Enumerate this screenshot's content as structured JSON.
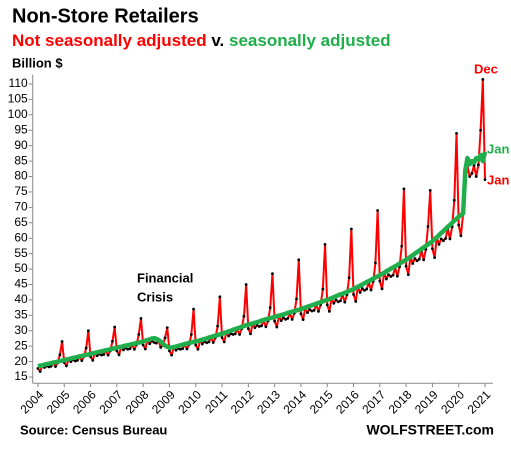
{
  "chart_data": {
    "type": "line",
    "title": "Non-Store Retailers",
    "subtitle_conjunction": "v.",
    "y_axis_label": "Billion $",
    "source": "Source: Census Bureau",
    "brand": "WOLFSTREET.com",
    "xlim": [
      2003.8,
      2021.3
    ],
    "xticks": [
      2004,
      2005,
      2006,
      2007,
      2008,
      2009,
      2010,
      2011,
      2012,
      2013,
      2014,
      2015,
      2016,
      2017,
      2018,
      2019,
      2020,
      2021
    ],
    "ylim": [
      13,
      113
    ],
    "yticks": [
      15,
      20,
      25,
      30,
      35,
      40,
      45,
      50,
      55,
      60,
      65,
      70,
      75,
      80,
      85,
      90,
      95,
      100,
      105,
      110
    ],
    "grid": false,
    "annotations": [
      {
        "text": "Dec",
        "color": "#ff0000"
      },
      {
        "text": "Jan",
        "color": "#1fae4b"
      },
      {
        "text": "Jan",
        "color": "#ff0000"
      },
      {
        "text": "Financial",
        "color": "#000000"
      },
      {
        "text": "Crisis",
        "color": "#000000"
      }
    ],
    "x": [
      2004,
      2004.083,
      2004.167,
      2004.25,
      2004.333,
      2004.417,
      2004.5,
      2004.583,
      2004.667,
      2004.75,
      2004.833,
      2004.917,
      2005,
      2005.083,
      2005.167,
      2005.25,
      2005.333,
      2005.417,
      2005.5,
      2005.583,
      2005.667,
      2005.75,
      2005.833,
      2005.917,
      2006,
      2006.083,
      2006.167,
      2006.25,
      2006.333,
      2006.417,
      2006.5,
      2006.583,
      2006.667,
      2006.75,
      2006.833,
      2006.917,
      2007,
      2007.083,
      2007.167,
      2007.25,
      2007.333,
      2007.417,
      2007.5,
      2007.583,
      2007.667,
      2007.75,
      2007.833,
      2007.917,
      2008,
      2008.083,
      2008.167,
      2008.25,
      2008.333,
      2008.417,
      2008.5,
      2008.583,
      2008.667,
      2008.75,
      2008.833,
      2008.917,
      2009,
      2009.083,
      2009.167,
      2009.25,
      2009.333,
      2009.417,
      2009.5,
      2009.583,
      2009.667,
      2009.75,
      2009.833,
      2009.917,
      2010,
      2010.083,
      2010.167,
      2010.25,
      2010.333,
      2010.417,
      2010.5,
      2010.583,
      2010.667,
      2010.75,
      2010.833,
      2010.917,
      2011,
      2011.083,
      2011.167,
      2011.25,
      2011.333,
      2011.417,
      2011.5,
      2011.583,
      2011.667,
      2011.75,
      2011.833,
      2011.917,
      2012,
      2012.083,
      2012.167,
      2012.25,
      2012.333,
      2012.417,
      2012.5,
      2012.583,
      2012.667,
      2012.75,
      2012.833,
      2012.917,
      2013,
      2013.083,
      2013.167,
      2013.25,
      2013.333,
      2013.417,
      2013.5,
      2013.583,
      2013.667,
      2013.75,
      2013.833,
      2013.917,
      2014,
      2014.083,
      2014.167,
      2014.25,
      2014.333,
      2014.417,
      2014.5,
      2014.583,
      2014.667,
      2014.75,
      2014.833,
      2014.917,
      2015,
      2015.083,
      2015.167,
      2015.25,
      2015.333,
      2015.417,
      2015.5,
      2015.583,
      2015.667,
      2015.75,
      2015.833,
      2015.917,
      2016,
      2016.083,
      2016.167,
      2016.25,
      2016.333,
      2016.417,
      2016.5,
      2016.583,
      2016.667,
      2016.75,
      2016.833,
      2016.917,
      2017,
      2017.083,
      2017.167,
      2017.25,
      2017.333,
      2017.417,
      2017.5,
      2017.583,
      2017.667,
      2017.75,
      2017.833,
      2017.917,
      2018,
      2018.083,
      2018.167,
      2018.25,
      2018.333,
      2018.417,
      2018.5,
      2018.583,
      2018.667,
      2018.75,
      2018.833,
      2018.917,
      2019,
      2019.083,
      2019.167,
      2019.25,
      2019.333,
      2019.417,
      2019.5,
      2019.583,
      2019.667,
      2019.75,
      2019.833,
      2019.917,
      2020,
      2020.083,
      2020.167,
      2020.25,
      2020.333,
      2020.417,
      2020.5,
      2020.583,
      2020.667,
      2020.75,
      2020.833,
      2020.917,
      2021
    ],
    "series": [
      {
        "name": "Not seasonally adjusted",
        "color": "#ff0000",
        "marker_color": "#000000",
        "values": [
          17.8,
          16.8,
          18.8,
          18.1,
          18.6,
          18.3,
          18.5,
          19.5,
          18.4,
          19.6,
          22.2,
          26.5,
          19.7,
          18.6,
          20.8,
          20.0,
          20.6,
          20.2,
          20.4,
          21.5,
          20.3,
          21.6,
          24.4,
          30.0,
          21.6,
          20.4,
          22.8,
          21.9,
          22.5,
          22.1,
          22.3,
          23.5,
          22.1,
          23.5,
          26.6,
          31.2,
          23.5,
          22.2,
          24.8,
          23.8,
          24.4,
          24.0,
          24.2,
          25.4,
          24.0,
          25.5,
          28.8,
          34.0,
          25.4,
          24.1,
          27.0,
          25.8,
          26.7,
          26.2,
          26.0,
          26.7,
          24.6,
          25.3,
          27.7,
          31.0,
          23.5,
          22.1,
          24.7,
          23.7,
          24.3,
          24.0,
          24.2,
          25.4,
          24.1,
          25.6,
          28.8,
          37.0,
          25.4,
          24.0,
          26.9,
          25.7,
          26.5,
          26.1,
          26.4,
          27.7,
          26.2,
          27.8,
          31.5,
          41.0,
          27.8,
          26.4,
          29.5,
          28.3,
          29.1,
          28.8,
          29.0,
          30.5,
          28.8,
          30.7,
          34.7,
          45.0,
          30.7,
          29.0,
          32.4,
          31.0,
          31.8,
          31.4,
          31.6,
          33.2,
          31.3,
          33.2,
          37.5,
          48.5,
          33.1,
          31.2,
          34.9,
          33.3,
          34.2,
          33.7,
          34.0,
          35.6,
          33.7,
          35.7,
          40.3,
          53.0,
          35.5,
          33.6,
          37.5,
          35.9,
          36.9,
          36.4,
          36.6,
          38.4,
          36.3,
          38.5,
          43.5,
          58.0,
          38.4,
          36.3,
          40.6,
          38.9,
          40.0,
          39.4,
          39.7,
          41.6,
          39.3,
          41.7,
          47.2,
          63.0,
          41.8,
          39.5,
          44.3,
          42.4,
          43.7,
          43.1,
          43.5,
          45.6,
          43.2,
          46.0,
          52.0,
          69.0,
          46.1,
          43.6,
          48.8,
          46.8,
          48.2,
          47.6,
          48.0,
          50.4,
          47.7,
          50.8,
          57.4,
          76.0,
          50.9,
          48.2,
          54.0,
          51.8,
          53.4,
          52.7,
          53.2,
          55.9,
          53.0,
          56.4,
          63.8,
          75.5,
          56.6,
          53.7,
          60.3,
          58.0,
          59.8,
          59.2,
          59.9,
          63.1,
          59.8,
          63.7,
          72.3,
          94.0,
          64.3,
          60.8,
          68.0,
          78.0,
          83.4,
          80.0,
          81.0,
          83.7,
          80.0,
          83.8,
          95.0,
          111.5,
          79.0
        ]
      },
      {
        "name": "seasonally adjusted",
        "color": "#1fae4b",
        "values": [
          18.5,
          18.7,
          18.8,
          19.0,
          19.2,
          19.3,
          19.5,
          19.7,
          19.8,
          20.0,
          20.2,
          20.3,
          20.5,
          20.7,
          20.8,
          21.0,
          21.2,
          21.3,
          21.5,
          21.7,
          21.8,
          22.0,
          22.2,
          22.3,
          22.5,
          22.7,
          22.8,
          23.0,
          23.2,
          23.3,
          23.5,
          23.7,
          23.8,
          24.0,
          24.2,
          24.3,
          24.5,
          24.7,
          24.8,
          25.0,
          25.2,
          25.3,
          25.5,
          25.7,
          25.8,
          26.0,
          26.2,
          26.3,
          26.5,
          26.8,
          27.0,
          27.2,
          27.5,
          27.6,
          27.4,
          27.0,
          26.5,
          25.8,
          25.2,
          24.8,
          24.5,
          24.6,
          24.7,
          24.9,
          25.1,
          25.3,
          25.5,
          25.7,
          25.9,
          26.1,
          26.2,
          26.4,
          26.5,
          26.7,
          26.9,
          27.1,
          27.3,
          27.5,
          27.8,
          28.0,
          28.2,
          28.4,
          28.6,
          28.8,
          29.0,
          29.3,
          29.5,
          29.8,
          30.0,
          30.3,
          30.5,
          30.8,
          31.0,
          31.3,
          31.5,
          31.8,
          32.0,
          32.2,
          32.4,
          32.6,
          32.8,
          33.0,
          33.3,
          33.5,
          33.7,
          33.9,
          34.1,
          34.3,
          34.5,
          34.7,
          34.9,
          35.1,
          35.3,
          35.5,
          35.8,
          36.0,
          36.2,
          36.4,
          36.6,
          36.8,
          37.0,
          37.3,
          37.5,
          37.8,
          38.0,
          38.3,
          38.5,
          38.8,
          39.0,
          39.3,
          39.5,
          39.8,
          40.0,
          40.3,
          40.6,
          40.9,
          41.2,
          41.5,
          41.8,
          42.0,
          42.3,
          42.6,
          42.9,
          43.2,
          43.5,
          43.9,
          44.3,
          44.6,
          45.0,
          45.4,
          45.8,
          46.1,
          46.5,
          46.9,
          47.3,
          47.6,
          48.0,
          48.4,
          48.8,
          49.3,
          49.7,
          50.1,
          50.5,
          50.9,
          51.3,
          51.8,
          52.2,
          52.6,
          53.0,
          53.5,
          54.0,
          54.5,
          55.0,
          55.5,
          56.0,
          56.5,
          57.0,
          57.5,
          58.0,
          58.5,
          59.0,
          59.7,
          60.3,
          61.0,
          61.7,
          62.3,
          63.0,
          63.7,
          64.3,
          65.0,
          65.7,
          66.3,
          67.0,
          67.5,
          68.0,
          82.0,
          86.0,
          84.0,
          85.0,
          84.5,
          86.0,
          85.5,
          87.0,
          85.0,
          88.0
        ]
      }
    ]
  }
}
